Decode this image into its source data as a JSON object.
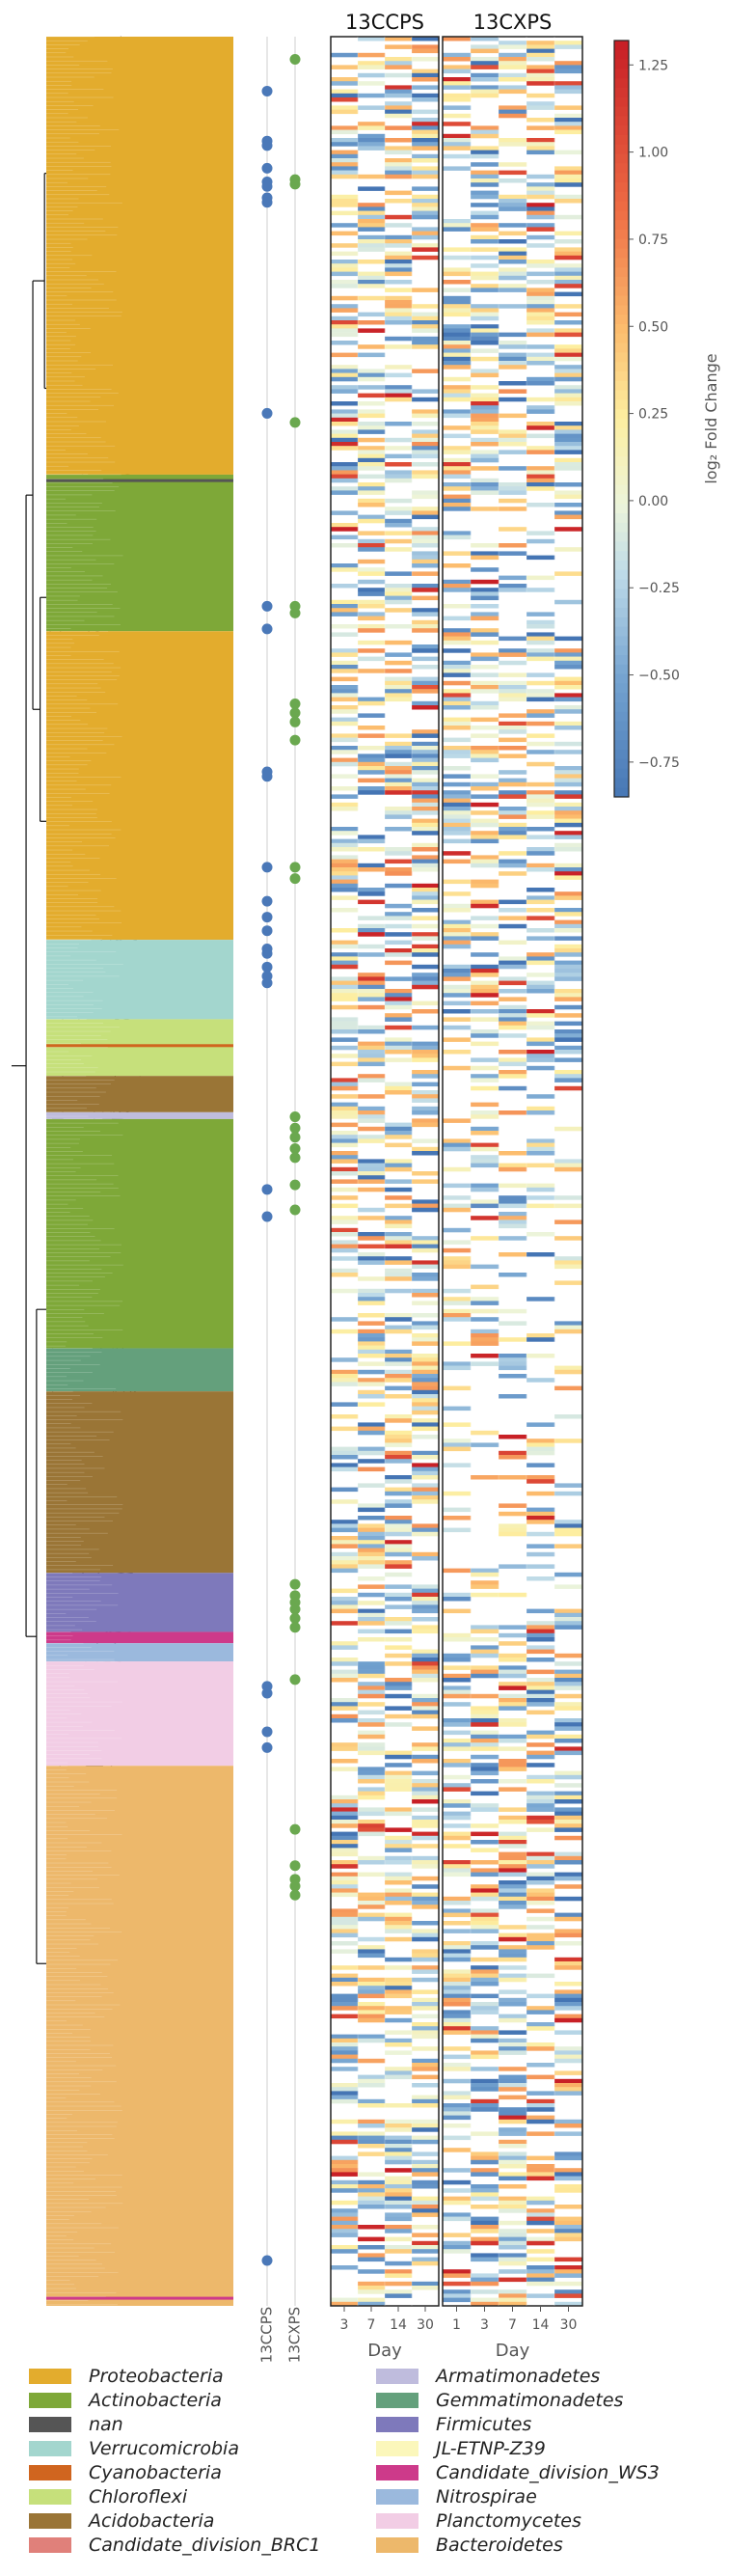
{
  "chart_data": {
    "type": "heatmap",
    "panels": [
      "13CCPS",
      "13CXPS"
    ],
    "x_tick_labels": [
      "3",
      "7",
      "14",
      "30"
    ],
    "xpanel_ticks": [
      "1",
      "3",
      "7",
      "14",
      "30"
    ],
    "xlabel": "Day",
    "colorbar": {
      "label": "log₂ Fold Change",
      "ticks": [
        "1.25",
        "1.00",
        "0.75",
        "0.50",
        "0.25",
        "0.00",
        "−0.25",
        "−0.50",
        "−0.75"
      ],
      "range": [
        -0.85,
        1.32
      ]
    },
    "indicator_columns": [
      "13CCPS",
      "13CXPS"
    ],
    "indicator_colors": {
      "13CCPS": "#4a78b8",
      "13CXPS": "#6aa84f"
    },
    "clade_blocks": [
      {
        "phylum": "Proteobacteria",
        "start": 0.0,
        "end": 0.193
      },
      {
        "phylum": "Actinobacteria",
        "start": 0.193,
        "end": 0.262
      },
      {
        "phylum": "Proteobacteria",
        "start": 0.262,
        "end": 0.398
      },
      {
        "phylum": "Verrucomicrobia",
        "start": 0.398,
        "end": 0.433
      },
      {
        "phylum": "Chloroflexi",
        "start": 0.433,
        "end": 0.458
      },
      {
        "phylum": "Acidobacteria",
        "start": 0.458,
        "end": 0.474
      },
      {
        "phylum": "Armatimonadetes",
        "start": 0.474,
        "end": 0.477
      },
      {
        "phylum": "Actinobacteria",
        "start": 0.477,
        "end": 0.578
      },
      {
        "phylum": "Gemmatimonadetes",
        "start": 0.578,
        "end": 0.597
      },
      {
        "phylum": "Acidobacteria",
        "start": 0.597,
        "end": 0.677
      },
      {
        "phylum": "Firmicutes",
        "start": 0.677,
        "end": 0.703
      },
      {
        "phylum": "Candidate_division_WS3",
        "start": 0.703,
        "end": 0.708
      },
      {
        "phylum": "Nitrospirae",
        "start": 0.708,
        "end": 0.716
      },
      {
        "phylum": "Planctomycetes",
        "start": 0.716,
        "end": 0.762
      },
      {
        "phylum": "Bacteroidetes",
        "start": 0.762,
        "end": 1.0
      }
    ],
    "ccps_marks": [
      0.024,
      0.046,
      0.048,
      0.058,
      0.064,
      0.066,
      0.071,
      0.073,
      0.166,
      0.251,
      0.261,
      0.324,
      0.326,
      0.366,
      0.381,
      0.388,
      0.394,
      0.402,
      0.404,
      0.41,
      0.414,
      0.417,
      0.508,
      0.52,
      0.727,
      0.73,
      0.747,
      0.754,
      0.98
    ],
    "cxps_marks": [
      0.01,
      0.063,
      0.065,
      0.17,
      0.251,
      0.254,
      0.294,
      0.298,
      0.302,
      0.31,
      0.366,
      0.371,
      0.476,
      0.481,
      0.485,
      0.49,
      0.494,
      0.506,
      0.517,
      0.682,
      0.687,
      0.69,
      0.693,
      0.697,
      0.701,
      0.724,
      0.79,
      0.806,
      0.812,
      0.815,
      0.819
    ]
  },
  "legend": {
    "items": [
      {
        "label": "Proteobacteria",
        "color": "#e3ac2d"
      },
      {
        "label": "Actinobacteria",
        "color": "#7ea838"
      },
      {
        "label": "nan",
        "color": "#555555"
      },
      {
        "label": "Verrucomicrobia",
        "color": "#a3d6ce"
      },
      {
        "label": "Cyanobacteria",
        "color": "#d0651f"
      },
      {
        "label": "Chloroflexi",
        "color": "#c6e07b"
      },
      {
        "label": "Acidobacteria",
        "color": "#9a7536"
      },
      {
        "label": "Candidate_division_BRC1",
        "color": "#e0807a"
      },
      {
        "label": "Armatimonadetes",
        "color": "#bfbcdd"
      },
      {
        "label": "Gemmatimonadetes",
        "color": "#64a07c"
      },
      {
        "label": "Firmicutes",
        "color": "#7e79bb"
      },
      {
        "label": "JL-ETNP-Z39",
        "color": "#fbf7bb"
      },
      {
        "label": "Candidate_division_WS3",
        "color": "#cd3a8a"
      },
      {
        "label": "Nitrospirae",
        "color": "#9bb9dd"
      },
      {
        "label": "Planctomycetes",
        "color": "#f2cde5"
      },
      {
        "label": "Bacteroidetes",
        "color": "#edb86b"
      }
    ]
  }
}
